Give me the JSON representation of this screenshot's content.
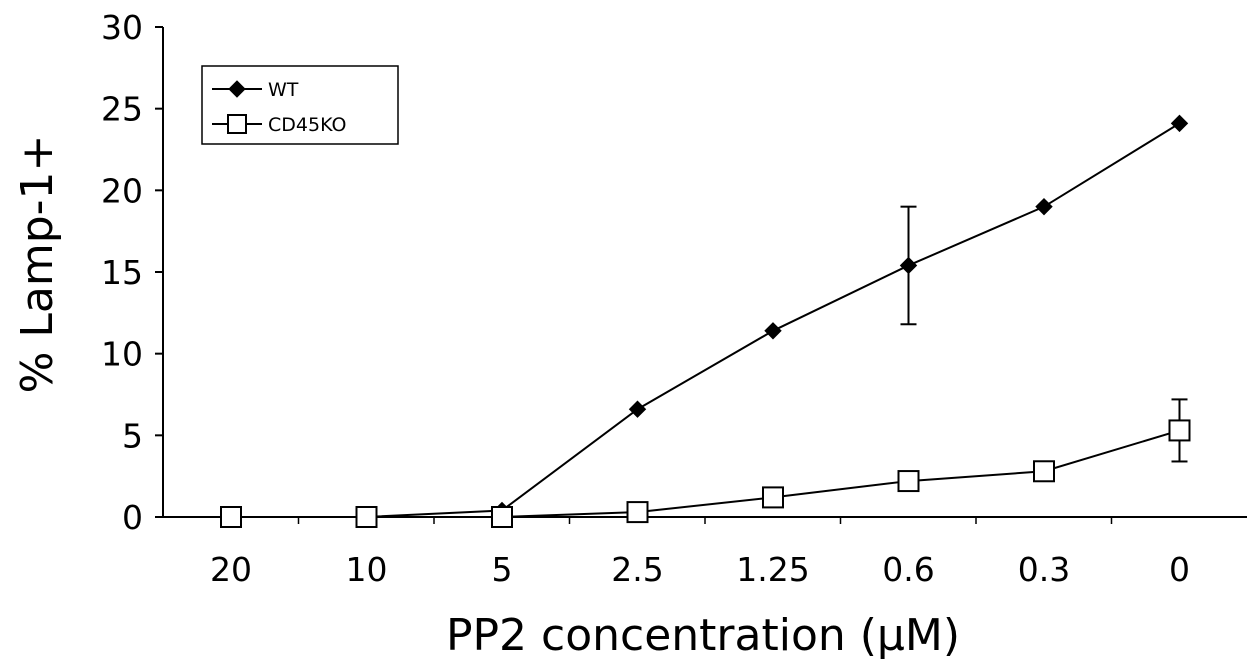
{
  "chart_data": {
    "type": "line",
    "xlabel": "PP2 concentration (μM)",
    "ylabel": "% Lamp-1+",
    "categories": [
      "20",
      "10",
      "5",
      "2.5",
      "1.25",
      "0.6",
      "0.3",
      "0"
    ],
    "ylim": [
      0,
      30
    ],
    "yticks": [
      "0",
      "5",
      "10",
      "15",
      "20",
      "25",
      "30"
    ],
    "grid": false,
    "legend_position": "top-left",
    "series": [
      {
        "name": "WT",
        "marker": "diamond",
        "color": "#000000",
        "values": [
          0,
          0,
          0.4,
          6.6,
          11.4,
          15.4,
          19.0,
          24.1
        ],
        "error": [
          null,
          null,
          null,
          null,
          null,
          3.6,
          null,
          null
        ]
      },
      {
        "name": "CD45KO",
        "marker": "square-open",
        "color": "#000000",
        "values": [
          0,
          0,
          0,
          0.3,
          1.2,
          2.2,
          2.8,
          5.3
        ],
        "error": [
          null,
          null,
          null,
          null,
          null,
          null,
          null,
          1.9
        ]
      }
    ]
  }
}
